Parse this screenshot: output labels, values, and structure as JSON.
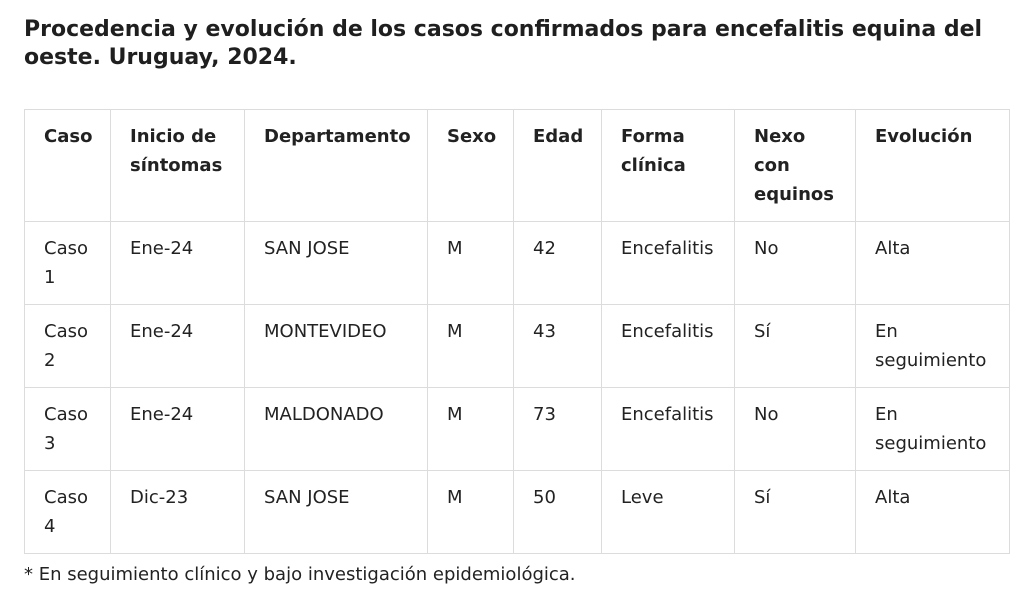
{
  "title": "Procedencia y evolución de los casos confirmados para encefalitis equina del oeste. Uruguay, 2024.",
  "table": {
    "headers": [
      "Caso",
      "Inicio de síntomas",
      "Departamento",
      "Sexo",
      "Edad",
      "Forma clínica",
      "Nexo con equinos",
      "Evolución"
    ],
    "rows": [
      [
        "Caso 1",
        "Ene-24",
        "SAN JOSE",
        "M",
        "42",
        "Encefalitis",
        "No",
        "Alta"
      ],
      [
        "Caso 2",
        "Ene-24",
        "MONTEVIDEO",
        "M",
        "43",
        "Encefalitis",
        "Sí",
        "En seguimiento"
      ],
      [
        "Caso 3",
        "Ene-24",
        "MALDONADO",
        "M",
        "73",
        "Encefalitis",
        "No",
        "En seguimiento"
      ],
      [
        "Caso 4",
        "Dic-23",
        "SAN JOSE",
        "M",
        "50",
        "Leve",
        "Sí",
        "Alta"
      ]
    ]
  },
  "footnote": "* En seguimiento clínico y bajo investigación epidemiológica."
}
